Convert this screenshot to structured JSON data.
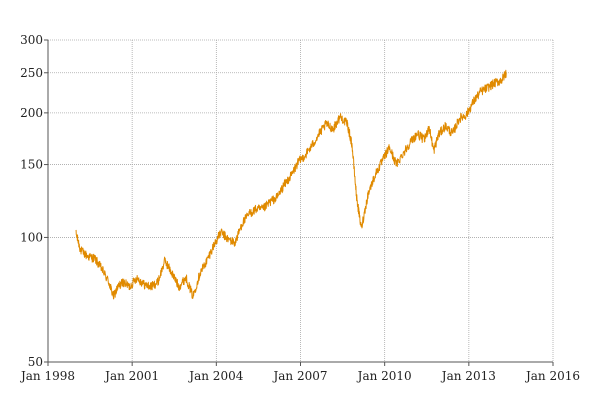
{
  "chart_data": {
    "type": "line",
    "title": "",
    "xlabel": "",
    "ylabel": "",
    "y_scale": "log",
    "ylim": [
      50,
      300
    ],
    "xlim": [
      "1998-01-01",
      "2016-01-01"
    ],
    "grid": true,
    "legend": "none",
    "x_ticks": [
      "Jan 1998",
      "Jan 2001",
      "Jan 2004",
      "Jan 2007",
      "Jan 2010",
      "Jan 2013",
      "Jan 2016"
    ],
    "y_ticks": [
      "50",
      "100",
      "150",
      "200",
      "250",
      "300"
    ],
    "series": [
      {
        "color": "#e08a00",
        "x": [
          "1999-01",
          "1999-03",
          "1999-06",
          "1999-09",
          "1999-12",
          "2000-03",
          "2000-05",
          "2000-07",
          "2000-09",
          "2000-12",
          "2001-03",
          "2001-06",
          "2001-09",
          "2001-12",
          "2002-03",
          "2002-06",
          "2002-09",
          "2002-12",
          "2003-03",
          "2003-06",
          "2003-09",
          "2003-12",
          "2004-03",
          "2004-06",
          "2004-09",
          "2004-12",
          "2005-03",
          "2005-06",
          "2005-09",
          "2005-12",
          "2006-03",
          "2006-06",
          "2006-09",
          "2006-12",
          "2007-03",
          "2007-06",
          "2007-09",
          "2007-12",
          "2008-03",
          "2008-06",
          "2008-09",
          "2008-11",
          "2009-01",
          "2009-03",
          "2009-06",
          "2009-09",
          "2009-12",
          "2010-03",
          "2010-06",
          "2010-09",
          "2010-12",
          "2011-03",
          "2011-06",
          "2011-08",
          "2011-10",
          "2011-12",
          "2012-03",
          "2012-06",
          "2012-09",
          "2012-12",
          "2013-03",
          "2013-06",
          "2013-09",
          "2013-12",
          "2014-03",
          "2014-05"
        ],
        "y": [
          102,
          93,
          90,
          89,
          84,
          78,
          72,
          76,
          78,
          76,
          80,
          77,
          76,
          78,
          88,
          82,
          76,
          80,
          72,
          82,
          88,
          96,
          103,
          99,
          97,
          108,
          114,
          117,
          117,
          122,
          125,
          134,
          141,
          152,
          158,
          167,
          178,
          188,
          183,
          196,
          188,
          168,
          125,
          105,
          128,
          142,
          153,
          165,
          150,
          160,
          170,
          178,
          172,
          185,
          162,
          177,
          186,
          178,
          194,
          198,
          213,
          225,
          230,
          236,
          240,
          250
        ]
      }
    ]
  }
}
